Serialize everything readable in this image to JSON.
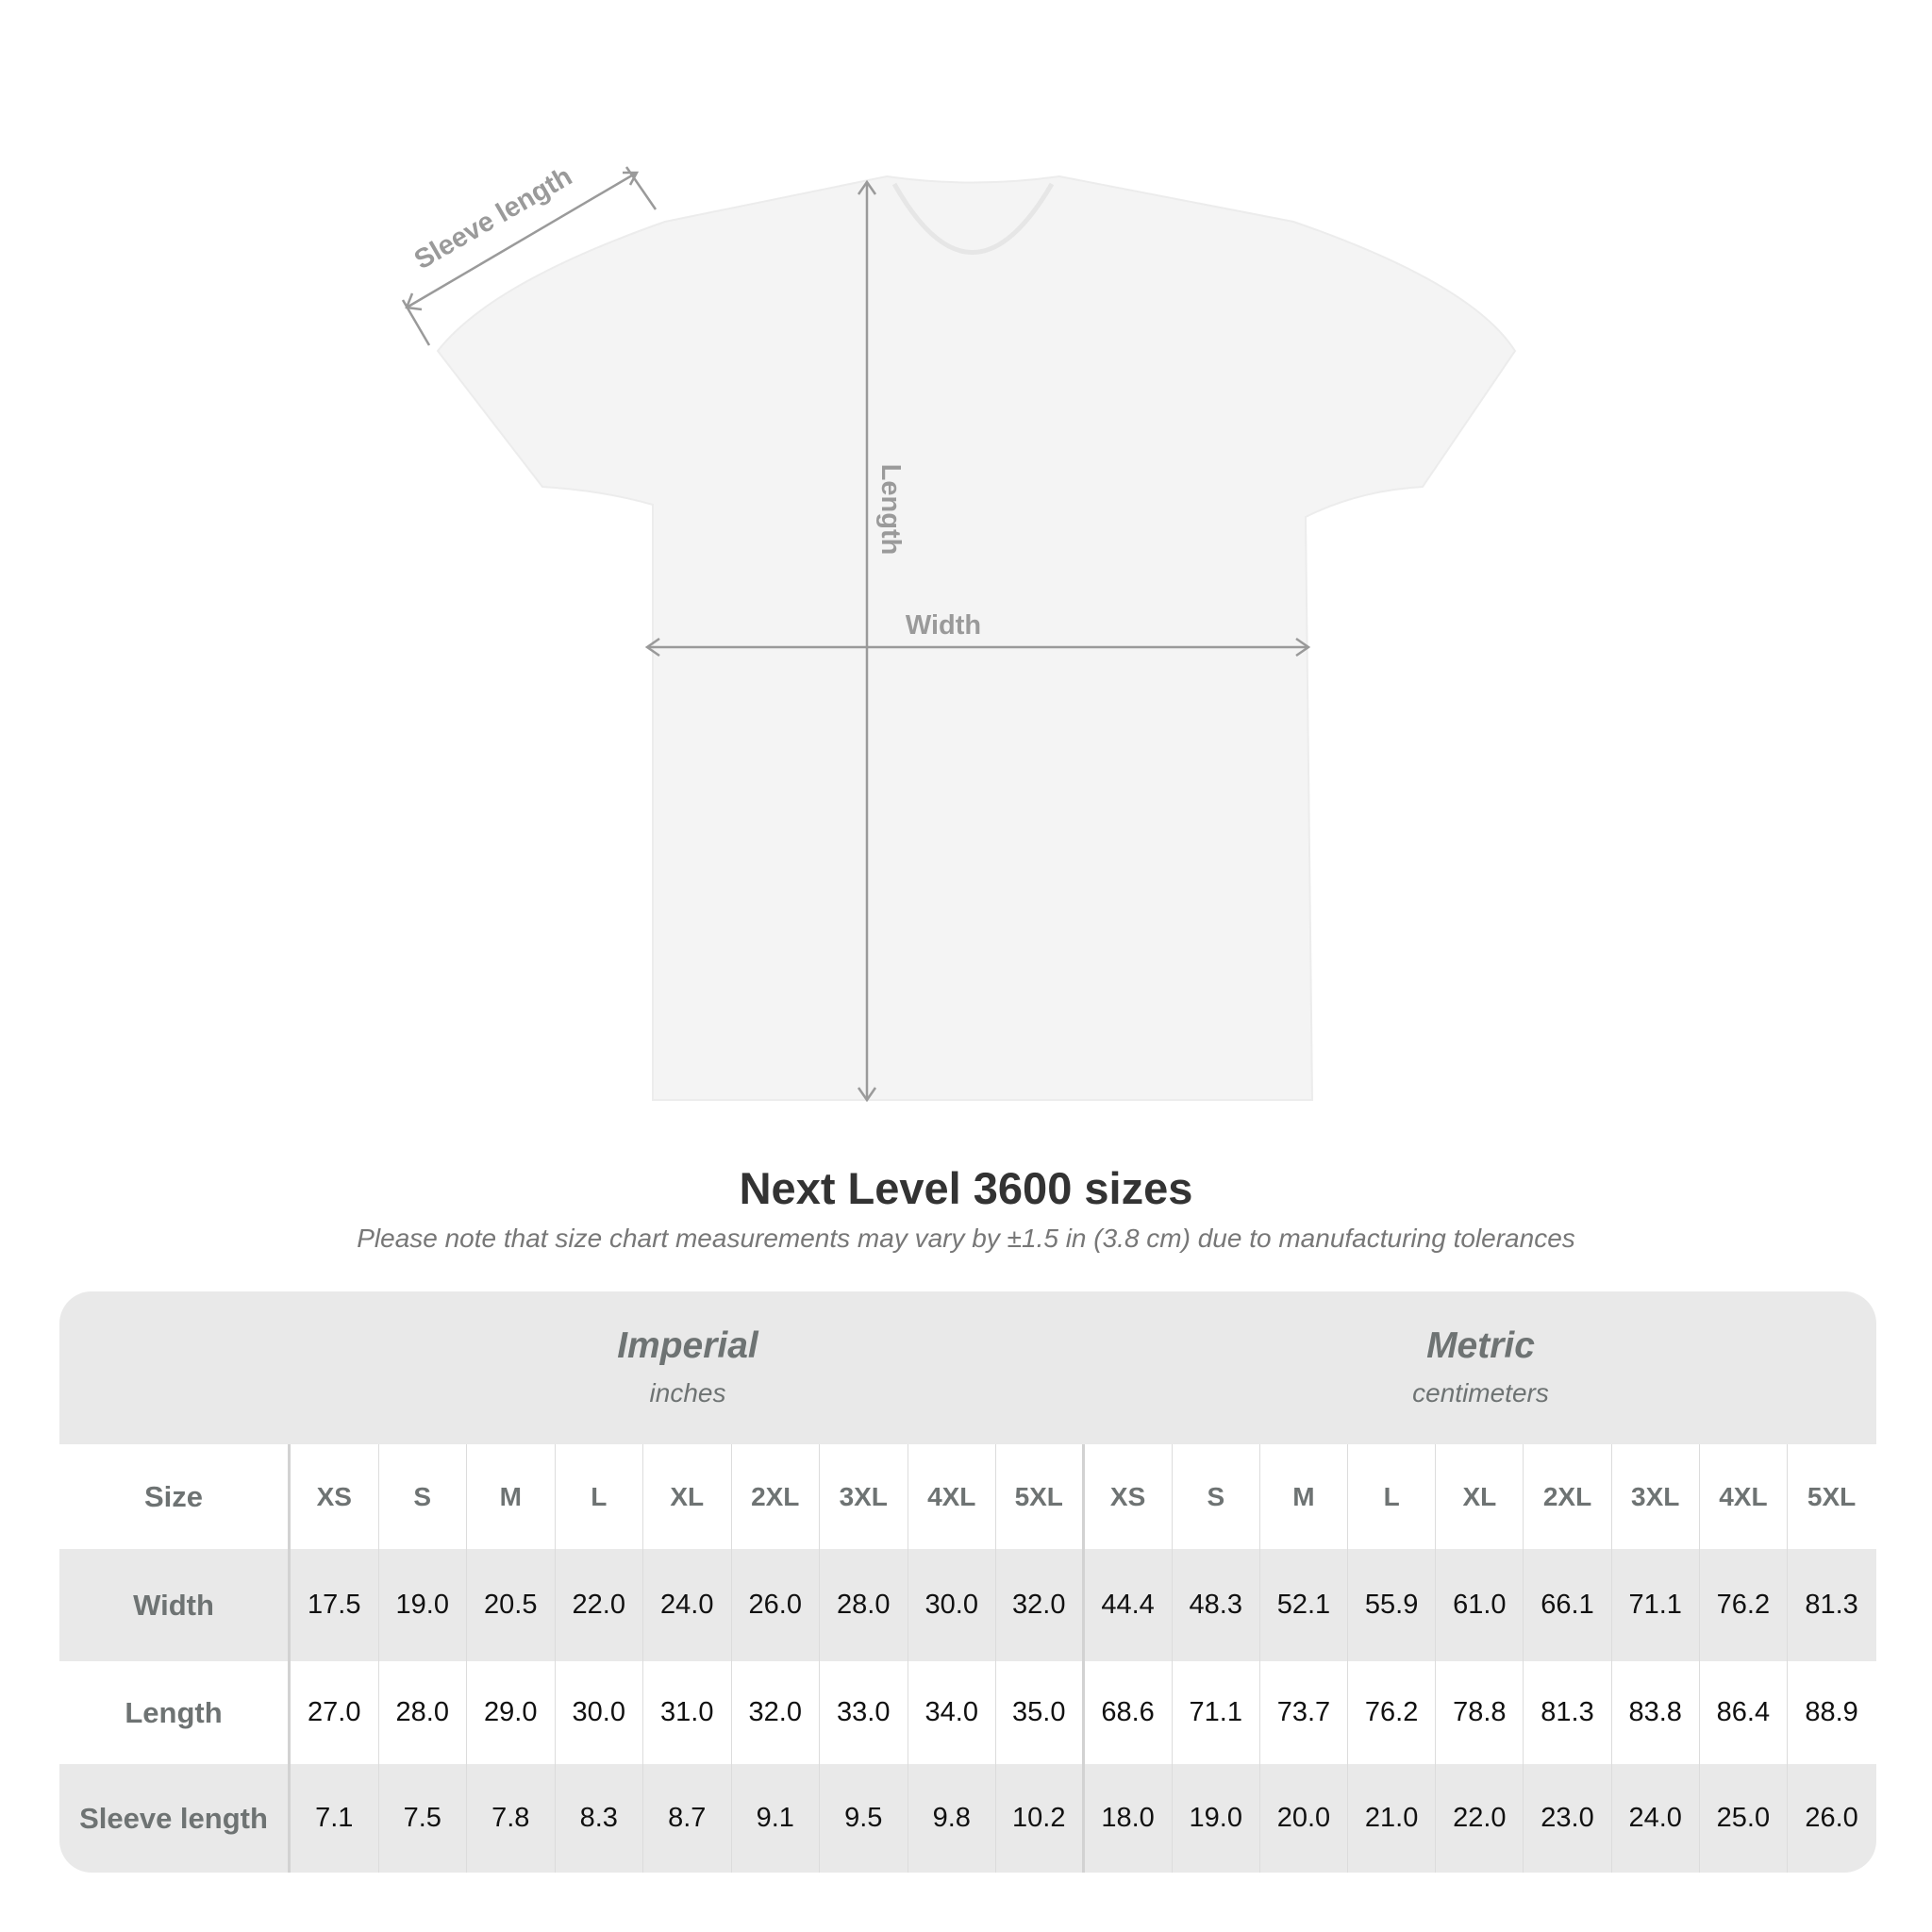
{
  "diagram": {
    "labels": {
      "sleeve": "Sleeve length",
      "length": "Length",
      "width": "Width"
    },
    "shirt_color": "#f5f5f5",
    "arrow_color": "#9a9a9a"
  },
  "title": "Next Level 3600 sizes",
  "subtitle": "Please note that size chart measurements may vary by ±1.5 in (3.8 cm) due to manufacturing tolerances",
  "table": {
    "imperial": {
      "name": "Imperial",
      "unit": "inches"
    },
    "metric": {
      "name": "Metric",
      "unit": "centimeters"
    },
    "size_label": "Size",
    "sizes": [
      "XS",
      "S",
      "M",
      "L",
      "XL",
      "2XL",
      "3XL",
      "4XL",
      "5XL"
    ],
    "rows": [
      {
        "label": "Width",
        "imperial": [
          "17.5",
          "19.0",
          "20.5",
          "22.0",
          "24.0",
          "26.0",
          "28.0",
          "30.0",
          "32.0"
        ],
        "metric": [
          "44.4",
          "48.3",
          "52.1",
          "55.9",
          "61.0",
          "66.1",
          "71.1",
          "76.2",
          "81.3"
        ]
      },
      {
        "label": "Length",
        "imperial": [
          "27.0",
          "28.0",
          "29.0",
          "30.0",
          "31.0",
          "32.0",
          "33.0",
          "34.0",
          "35.0"
        ],
        "metric": [
          "68.6",
          "71.1",
          "73.7",
          "76.2",
          "78.8",
          "81.3",
          "83.8",
          "86.4",
          "88.9"
        ]
      },
      {
        "label": "Sleeve length",
        "imperial": [
          "7.1",
          "7.5",
          "7.8",
          "8.3",
          "8.7",
          "9.1",
          "9.5",
          "9.8",
          "10.2"
        ],
        "metric": [
          "18.0",
          "19.0",
          "20.0",
          "21.0",
          "22.0",
          "23.0",
          "24.0",
          "25.0",
          "26.0"
        ]
      }
    ]
  }
}
